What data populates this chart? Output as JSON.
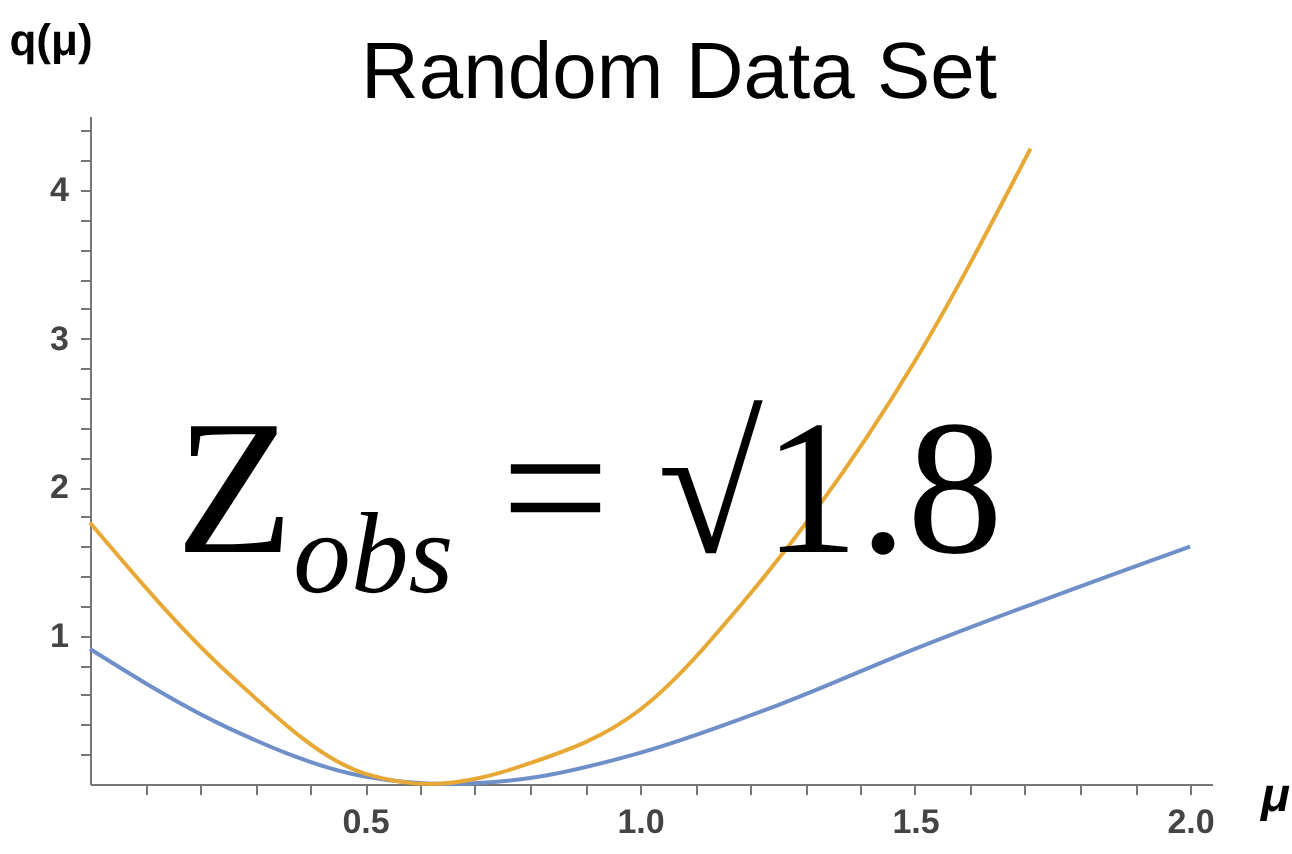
{
  "chart_data": {
    "type": "line",
    "title": "Random Data Set",
    "xlabel": "μ",
    "ylabel": "q(μ)",
    "annotations": [
      "Z$_{obs}$ = √1.8"
    ],
    "xlim": [
      0,
      2.04
    ],
    "ylim": [
      0,
      4.5
    ],
    "xticks": [
      {
        "value": 0.1,
        "label": null
      },
      {
        "value": 0.2,
        "label": null
      },
      {
        "value": 0.3,
        "label": null
      },
      {
        "value": 0.4,
        "label": null
      },
      0.5,
      {
        "value": 0.6,
        "label": null
      },
      {
        "value": 0.7,
        "label": null
      },
      {
        "value": 0.8,
        "label": null
      },
      {
        "value": 0.9,
        "label": null
      },
      {
        "value": 1,
        "label": "1.0"
      },
      {
        "value": 1.1,
        "label": null
      },
      {
        "value": 1.2,
        "label": null
      },
      {
        "value": 1.3,
        "label": null
      },
      {
        "value": 1.4,
        "label": null
      },
      1.5,
      {
        "value": 1.6,
        "label": null
      },
      {
        "value": 1.7,
        "label": null
      },
      {
        "value": 1.8,
        "label": null
      },
      {
        "value": 1.9,
        "label": null
      },
      {
        "value": 2,
        "label": "2.0"
      }
    ],
    "yticks": [
      {
        "value": 0.2,
        "label": null
      },
      {
        "value": 0.4,
        "label": null
      },
      {
        "value": 0.6,
        "label": null
      },
      {
        "value": 0.8,
        "label": null
      },
      1,
      {
        "value": 1.2,
        "label": null
      },
      {
        "value": 1.4,
        "label": null
      },
      {
        "value": 1.6,
        "label": null
      },
      {
        "value": 1.8,
        "label": null
      },
      2,
      {
        "value": 2.2,
        "label": null
      },
      {
        "value": 2.4,
        "label": null
      },
      {
        "value": 2.6,
        "label": null
      },
      {
        "value": 2.8,
        "label": null
      },
      3,
      {
        "value": 3.2,
        "label": null
      },
      {
        "value": 3.4,
        "label": null
      },
      {
        "value": 3.6,
        "label": null
      },
      {
        "value": 3.8,
        "label": null
      },
      4,
      {
        "value": 4.2,
        "label": null
      },
      {
        "value": 4.4,
        "label": null
      }
    ],
    "series": [
      {
        "color": "#6f8fc8",
        "x": [
          0,
          0.25,
          0.5,
          0.65,
          0.8,
          1.0,
          1.25,
          1.5,
          2.0
        ],
        "values": [
          0.91,
          0.38,
          0.05,
          0,
          0.04,
          0.21,
          0.53,
          0.91,
          1.6
        ]
      },
      {
        "color": "#e8a835",
        "x": [
          0,
          0.25,
          0.5,
          0.62,
          0.8,
          1.0,
          1.2,
          1.5,
          1.71
        ],
        "values": [
          1.76,
          0.75,
          0.07,
          0,
          0.14,
          0.5,
          1.28,
          2.85,
          4.28
        ]
      }
    ]
  }
}
